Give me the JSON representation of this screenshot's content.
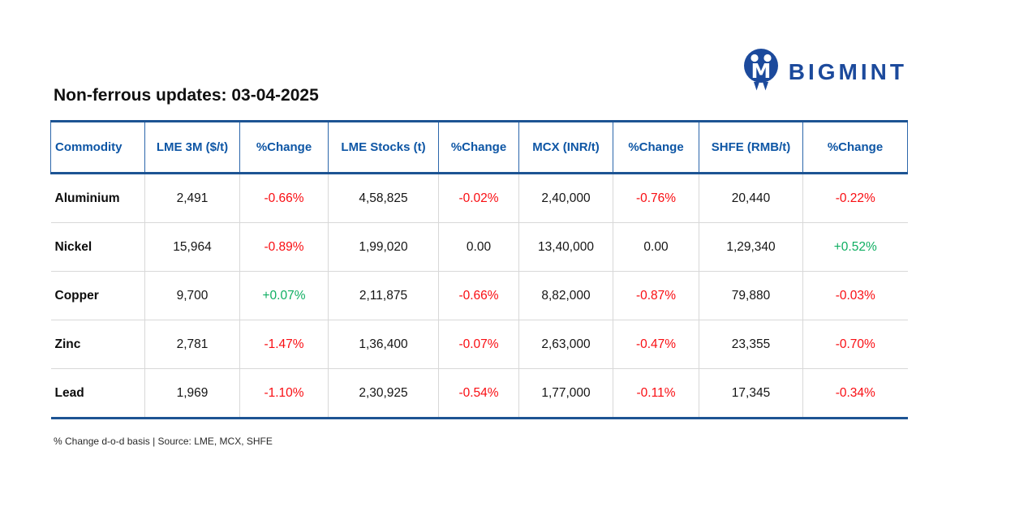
{
  "brand": {
    "name": "BIGMINT",
    "icon": "bigmint-owl-icon"
  },
  "title": "Non-ferrous updates: 03-04-2025",
  "footnote": "% Change d-o-d basis | Source: LME, MCX, SHFE",
  "colors": {
    "navy": "#1c4a9c",
    "header_blue": "#0e56a5",
    "border_navy": "#1d5493",
    "negative_red": "#f90d12",
    "positive_green": "#0fae62"
  },
  "chart_data": {
    "type": "table",
    "title": "Non-ferrous updates: 03-04-2025",
    "columns": [
      "Commodity",
      "LME 3M ($/t)",
      "%Change",
      "LME Stocks (t)",
      "%Change",
      "MCX (INR/t)",
      "%Change",
      "SHFE (RMB/t)",
      "%Change"
    ],
    "change_column_indexes": [
      2,
      4,
      6,
      8
    ],
    "rows": [
      [
        "Aluminium",
        "2,491",
        "-0.66%",
        "4,58,825",
        "-0.02%",
        "2,40,000",
        "-0.76%",
        "20,440",
        "-0.22%"
      ],
      [
        "Nickel",
        "15,964",
        "-0.89%",
        "1,99,020",
        "0.00",
        "13,40,000",
        "0.00",
        "1,29,340",
        "+0.52%"
      ],
      [
        "Copper",
        "9,700",
        "+0.07%",
        "2,11,875",
        "-0.66%",
        "8,82,000",
        "-0.87%",
        "79,880",
        "-0.03%"
      ],
      [
        "Zinc",
        "2,781",
        "-1.47%",
        "1,36,400",
        "-0.07%",
        "2,63,000",
        "-0.47%",
        "23,355",
        "-0.70%"
      ],
      [
        "Lead",
        "1,969",
        "-1.10%",
        "2,30,925",
        "-0.54%",
        "1,77,000",
        "-0.11%",
        "17,345",
        "-0.34%"
      ]
    ],
    "note": "% Change d-o-d basis",
    "source": "LME, MCX, SHFE",
    "legend_position": "none",
    "grid": true
  }
}
